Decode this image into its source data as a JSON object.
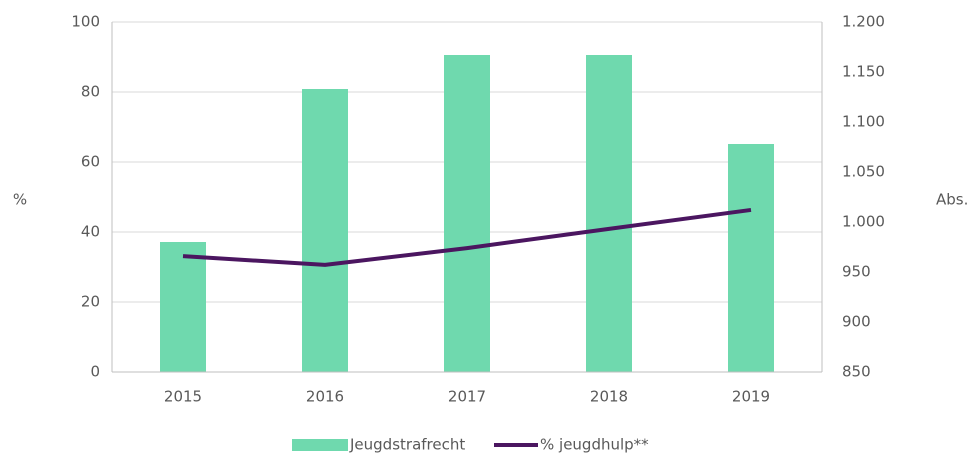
{
  "chart_data": {
    "type": "bar-line",
    "categories": [
      "2015",
      "2016",
      "2017",
      "2018",
      "2019"
    ],
    "series": [
      {
        "name": "Jeugdstrafrecht",
        "type": "bar",
        "color": "#6fd9ae",
        "axis": "y2",
        "values": [
          980,
          1133,
          1167,
          1167,
          1078
        ]
      },
      {
        "name": "% jeugdhulp**",
        "type": "line",
        "color": "#4b1660",
        "values": [
          33.1,
          30.6,
          35.4,
          40.9,
          46.3
        ]
      }
    ],
    "ylabel": "%",
    "y2label": "Abs.",
    "ylim": [
      0,
      100
    ],
    "yticks": [
      0,
      20,
      40,
      60,
      80,
      100
    ],
    "y2lim": [
      850,
      1200
    ],
    "y2ticks": [
      850,
      900,
      950,
      {
        "value": 1000,
        "label": "1.000"
      },
      {
        "value": 1050,
        "label": "1.050"
      },
      {
        "value": 1100,
        "label": "1.100"
      },
      {
        "value": 1150,
        "label": "1.150"
      },
      {
        "value": 1200,
        "label": "1.200"
      }
    ],
    "grid": true,
    "legend": "bottom"
  }
}
